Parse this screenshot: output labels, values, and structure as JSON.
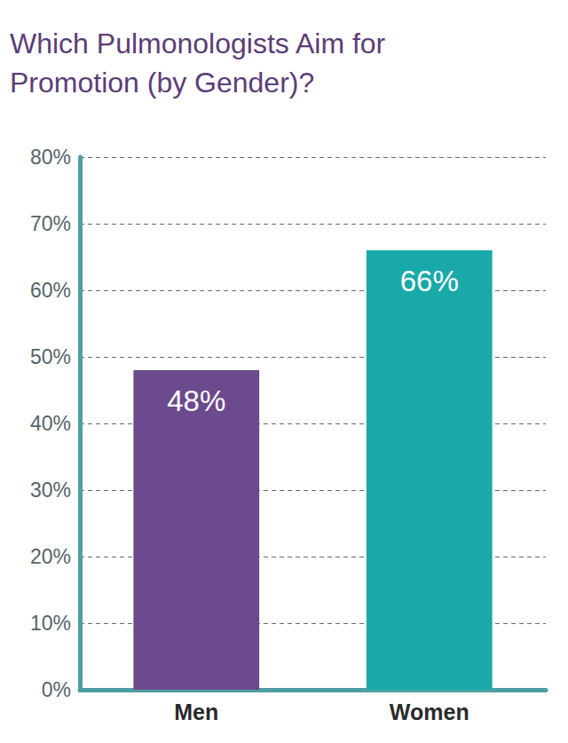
{
  "chart_data": {
    "type": "bar",
    "title": "Which Pulmonologists Aim for\nPromotion (by Gender)?",
    "categories": [
      "Men",
      "Women"
    ],
    "values": [
      48,
      66
    ],
    "value_labels": [
      "48%",
      "66%"
    ],
    "colors": [
      "#6b4a8e",
      "#19a9a9"
    ],
    "ylim": [
      0,
      80
    ],
    "yticks": [
      {
        "value": 0,
        "label": "0%"
      },
      {
        "value": 10,
        "label": "10%"
      },
      {
        "value": 20,
        "label": "20%"
      },
      {
        "value": 30,
        "label": "30%"
      },
      {
        "value": 40,
        "label": "40%"
      },
      {
        "value": 50,
        "label": "50%"
      },
      {
        "value": 60,
        "label": "60%"
      },
      {
        "value": 70,
        "label": "70%"
      },
      {
        "value": 80,
        "label": "80%"
      }
    ],
    "grid": true,
    "data_labels": true
  }
}
